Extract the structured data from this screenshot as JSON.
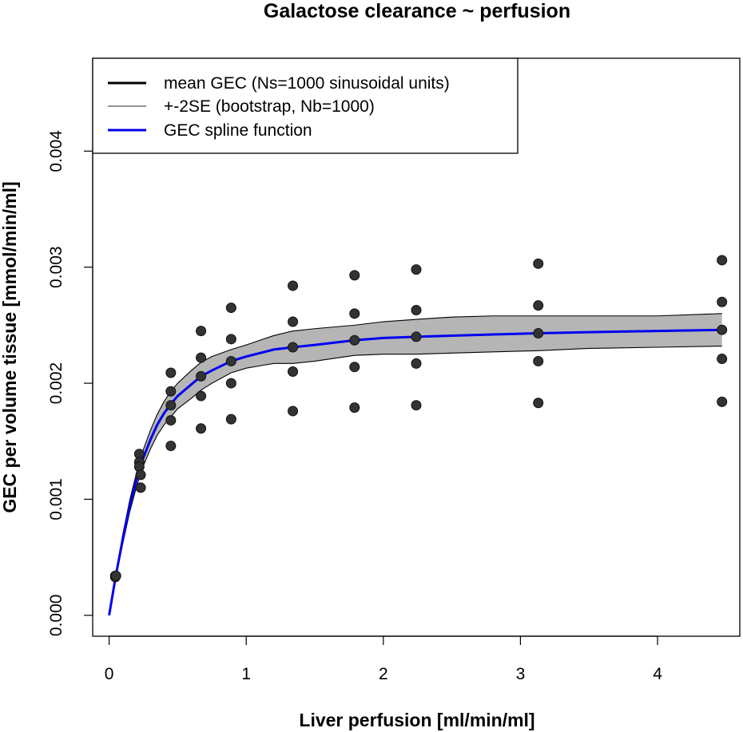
{
  "chart_data": {
    "type": "scatter",
    "title": "Galactose clearance ~ perfusion",
    "xlabel": "Liver perfusion [ml/min/ml]",
    "ylabel": "GEC per volume tissue [mmol/min/ml]",
    "xlim": [
      -0.12,
      4.6
    ],
    "ylim": [
      -0.00018,
      0.0048
    ],
    "x_ticks": [
      0,
      1,
      2,
      3,
      4
    ],
    "x_tick_labels": [
      "0",
      "1",
      "2",
      "3",
      "4"
    ],
    "y_ticks": [
      0.0,
      0.001,
      0.002,
      0.003,
      0.004
    ],
    "y_tick_labels": [
      "0.000",
      "0.001",
      "0.002",
      "0.003",
      "0.004"
    ],
    "grid": false,
    "legend_position": "top-left",
    "legend": [
      {
        "label": "mean GEC (Ns=1000 sinusoidal units)",
        "color": "#000000"
      },
      {
        "label": "+-2SE (bootstrap, Nb=1000)",
        "color": "#555555"
      },
      {
        "label": "GEC spline function",
        "color": "#0000ee"
      }
    ],
    "points": [
      {
        "x": 0.045,
        "y": 0.00034
      },
      {
        "x": 0.045,
        "y": 0.00033
      },
      {
        "x": 0.05,
        "y": 0.00034
      },
      {
        "x": 0.22,
        "y": 0.00139
      },
      {
        "x": 0.22,
        "y": 0.00132
      },
      {
        "x": 0.22,
        "y": 0.00128
      },
      {
        "x": 0.23,
        "y": 0.00121
      },
      {
        "x": 0.23,
        "y": 0.0011
      },
      {
        "x": 0.45,
        "y": 0.00209
      },
      {
        "x": 0.45,
        "y": 0.00193
      },
      {
        "x": 0.45,
        "y": 0.00181
      },
      {
        "x": 0.45,
        "y": 0.00168
      },
      {
        "x": 0.45,
        "y": 0.00146
      },
      {
        "x": 0.67,
        "y": 0.00245
      },
      {
        "x": 0.67,
        "y": 0.00222
      },
      {
        "x": 0.67,
        "y": 0.00206
      },
      {
        "x": 0.67,
        "y": 0.00189
      },
      {
        "x": 0.67,
        "y": 0.00161
      },
      {
        "x": 0.89,
        "y": 0.00265
      },
      {
        "x": 0.89,
        "y": 0.00238
      },
      {
        "x": 0.89,
        "y": 0.00219
      },
      {
        "x": 0.89,
        "y": 0.002
      },
      {
        "x": 0.89,
        "y": 0.00169
      },
      {
        "x": 1.34,
        "y": 0.00284
      },
      {
        "x": 1.34,
        "y": 0.00253
      },
      {
        "x": 1.34,
        "y": 0.00231
      },
      {
        "x": 1.34,
        "y": 0.0021
      },
      {
        "x": 1.34,
        "y": 0.00176
      },
      {
        "x": 1.79,
        "y": 0.00293
      },
      {
        "x": 1.79,
        "y": 0.0026
      },
      {
        "x": 1.79,
        "y": 0.00237
      },
      {
        "x": 1.79,
        "y": 0.00214
      },
      {
        "x": 1.79,
        "y": 0.00179
      },
      {
        "x": 2.24,
        "y": 0.00298
      },
      {
        "x": 2.24,
        "y": 0.00263
      },
      {
        "x": 2.24,
        "y": 0.0024
      },
      {
        "x": 2.24,
        "y": 0.00217
      },
      {
        "x": 2.24,
        "y": 0.00181
      },
      {
        "x": 3.13,
        "y": 0.00303
      },
      {
        "x": 3.13,
        "y": 0.00267
      },
      {
        "x": 3.13,
        "y": 0.00243
      },
      {
        "x": 3.13,
        "y": 0.00219
      },
      {
        "x": 3.13,
        "y": 0.00183
      },
      {
        "x": 4.47,
        "y": 0.00306
      },
      {
        "x": 4.47,
        "y": 0.0027
      },
      {
        "x": 4.47,
        "y": 0.00246
      },
      {
        "x": 4.47,
        "y": 0.00221
      },
      {
        "x": 4.47,
        "y": 0.00184
      }
    ],
    "spline": {
      "x": [
        0.0,
        0.02,
        0.05,
        0.1,
        0.15,
        0.2,
        0.25,
        0.3,
        0.35,
        0.4,
        0.45,
        0.5,
        0.6,
        0.67,
        0.75,
        0.89,
        1.0,
        1.1,
        1.2,
        1.34,
        1.5,
        1.79,
        2.0,
        2.24,
        2.5,
        2.8,
        3.13,
        3.5,
        4.0,
        4.47
      ],
      "y": [
        0.0,
        0.00014,
        0.00035,
        0.00066,
        0.00094,
        0.00117,
        0.00136,
        0.00151,
        0.00164,
        0.00174,
        0.00182,
        0.00189,
        0.00199,
        0.00206,
        0.00211,
        0.00219,
        0.00223,
        0.00226,
        0.00229,
        0.00231,
        0.00233,
        0.00237,
        0.00239,
        0.0024,
        0.00241,
        0.00242,
        0.00243,
        0.00244,
        0.00245,
        0.00246
      ]
    },
    "upper_band": [
      0.0,
      0.00015,
      0.00037,
      0.0007,
      0.00099,
      0.00123,
      0.00143,
      0.00159,
      0.00173,
      0.00184,
      0.00193,
      0.002,
      0.00211,
      0.00218,
      0.00223,
      0.00229,
      0.00233,
      0.00237,
      0.00241,
      0.00245,
      0.00247,
      0.0025,
      0.00253,
      0.00255,
      0.00257,
      0.00258,
      0.00258,
      0.00258,
      0.00258,
      0.0026
    ],
    "lower_band": [
      0.0,
      0.00013,
      0.00033,
      0.00062,
      0.00089,
      0.00111,
      0.00129,
      0.00143,
      0.00155,
      0.00164,
      0.00171,
      0.00178,
      0.00187,
      0.00194,
      0.002,
      0.00209,
      0.00213,
      0.00215,
      0.00217,
      0.00217,
      0.00219,
      0.00224,
      0.00225,
      0.00225,
      0.00226,
      0.00227,
      0.00228,
      0.0023,
      0.00231,
      0.00232
    ]
  }
}
